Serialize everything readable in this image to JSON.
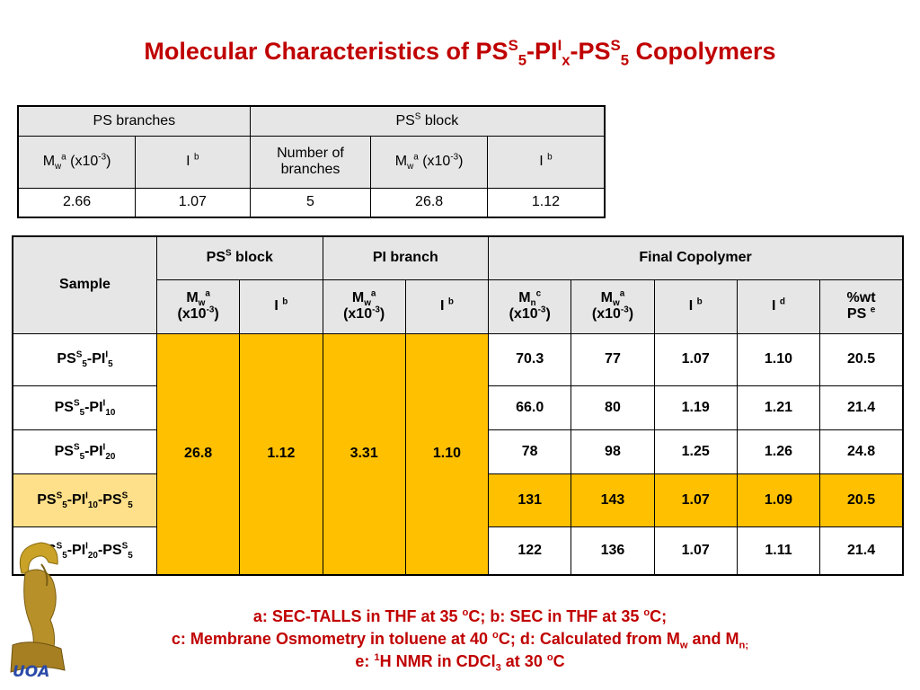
{
  "title": {
    "p1": "Molecular Characteristics of PS",
    "p1_sup": "S",
    "p1_sub": "5",
    "p2": "-PI",
    "p2_sup": "I",
    "p2_sub": "x",
    "p3": "-PS",
    "p3_sup": "S",
    "p3_sub": "5",
    "p4": " Copolymers"
  },
  "table1": {
    "group_ps_branches": "PS branches",
    "group_pss_block": {
      "a": "PS",
      "sup": "S",
      "b": " block"
    },
    "h_mw": {
      "a": "M",
      "sub": "w",
      "sup": "a",
      "b": " (x10",
      "exp": "-3",
      "c": ")"
    },
    "h_i": {
      "a": "I ",
      "sup": "b"
    },
    "h_nbranches": "Number of branches",
    "h_mw2": {
      "a": "M",
      "sub": "w",
      "sup": "a",
      "b": " (x10",
      "exp": "-3",
      "c": ")"
    },
    "h_i2": {
      "a": "I ",
      "sup": "b"
    },
    "row": [
      "2.66",
      "1.07",
      "5",
      "26.8",
      "1.12"
    ]
  },
  "table2": {
    "h_sample": "Sample",
    "h_pss_block": {
      "a": "PS",
      "sup": "S",
      "b": " block"
    },
    "h_pi_branch": "PI branch",
    "h_final": "Final Copolymer",
    "h_mw": {
      "a": "M",
      "sub": "w",
      "sup": "a",
      "b": "(x10",
      "exp": "-3",
      "c": ")"
    },
    "h_i_b": {
      "a": "I ",
      "sup": "b"
    },
    "h_mn": {
      "a": "M",
      "sub": "n",
      "sup": "c",
      "b": "(x10",
      "exp": "-3",
      "c": ")"
    },
    "h_i_d": {
      "a": "I ",
      "sup": "d"
    },
    "h_wt": {
      "a": "%wt",
      "b": "PS ",
      "sup": "e"
    },
    "merged": [
      "26.8",
      "1.12",
      "3.31",
      "1.10"
    ],
    "rows": [
      {
        "sample": {
          "a": "PS",
          "sup1": "S",
          "sub1": "5",
          "b": "-PI",
          "sup2": "I",
          "sub2": "5",
          "c": "",
          "sup3": "",
          "sub3": ""
        },
        "values": [
          "70.3",
          "77",
          "1.07",
          "1.10",
          "20.5"
        ]
      },
      {
        "sample": {
          "a": "PS",
          "sup1": "S",
          "sub1": "5",
          "b": "-PI",
          "sup2": "I",
          "sub2": "10",
          "c": "",
          "sup3": "",
          "sub3": ""
        },
        "values": [
          "66.0",
          "80",
          "1.19",
          "1.21",
          "21.4"
        ]
      },
      {
        "sample": {
          "a": "PS",
          "sup1": "S",
          "sub1": "5",
          "b": "-PI",
          "sup2": "I",
          "sub2": "20",
          "c": "",
          "sup3": "",
          "sub3": ""
        },
        "values": [
          "78",
          "98",
          "1.25",
          "1.26",
          "24.8"
        ]
      },
      {
        "sample": {
          "a": "PS",
          "sup1": "S",
          "sub1": "5",
          "b": "-PI",
          "sup2": "I",
          "sub2": "10",
          "c": "-PS",
          "sup3": "S",
          "sub3": "5"
        },
        "values": [
          "131",
          "143",
          "1.07",
          "1.09",
          "20.5"
        ]
      },
      {
        "sample": {
          "a": "PS",
          "sup1": "S",
          "sub1": "5",
          "b": "-PI",
          "sup2": "I",
          "sub2": "20",
          "c": "-PS",
          "sup3": "S",
          "sub3": "5"
        },
        "values": [
          "122",
          "136",
          "1.07",
          "1.11",
          "21.4"
        ]
      }
    ]
  },
  "notes": {
    "l1": {
      "a": "a: SEC-TALLS in THF at 35 ",
      "sup1": "o",
      "b": "C; b: SEC in THF at 35 ",
      "sup2": "o",
      "c": "C;"
    },
    "l2": {
      "a": "c: Membrane Osmometry in toluene at 40 ",
      "sup1": "o",
      "b": "C; d: Calculated from M",
      "sub1": "w",
      "c": " and M",
      "sub2": "n;"
    },
    "l3": {
      "a": "e: ",
      "sup1": "1",
      "b": "H NMR in CDCl",
      "sub1": "3",
      "c": " at 30 ",
      "sup2": "o",
      "d": "C"
    }
  },
  "logo": {
    "text": "UOA",
    "icon": "helmeted-head-icon"
  },
  "colors": {
    "title": "#c00000",
    "highlight": "#ffc000",
    "highlight_light": "#ffe08a",
    "header_bg": "#e6e6e6"
  }
}
